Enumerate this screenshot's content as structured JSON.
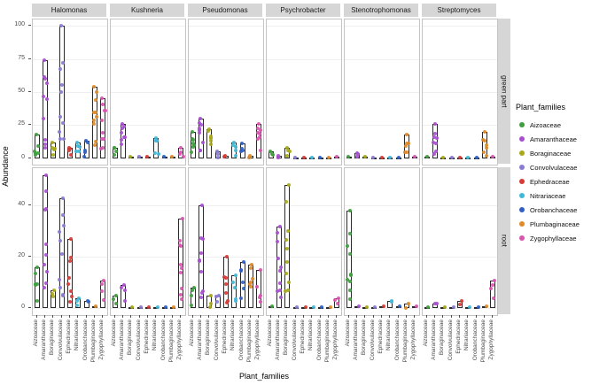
{
  "chart_data": {
    "type": "bar",
    "title": "",
    "xlabel": "Plant_families",
    "ylabel": "Abundance",
    "legend_title": "Plant_families",
    "legend_position": "right",
    "facet_cols": [
      "Halomonas",
      "Kushneria",
      "Pseudomonas",
      "Psychrobacter",
      "Stenotrophomonas",
      "Streptomyces"
    ],
    "facet_rows": [
      "green part",
      "root"
    ],
    "categories": [
      "Aizoaceae",
      "Amaranthaceae",
      "Boraginaceae",
      "Convolvulaceae",
      "Ephedraceae",
      "Nitrariaceae",
      "Orobanchaceae",
      "Plumbaginaceae",
      "Zygophyllaceae"
    ],
    "colors": {
      "Aizoaceae": "#3f9e3f",
      "Amaranthaceae": "#a84fd0",
      "Boraginaceae": "#a8a818",
      "Convolvulaceae": "#8a7ad2",
      "Ephedraceae": "#d83a34",
      "Nitrariaceae": "#3fb8d8",
      "Orobanchaceae": "#2f5fc4",
      "Plumbaginaceae": "#e08a28",
      "Zygophyllaceae": "#d855b0"
    },
    "rows": [
      {
        "name": "green part",
        "ylim": [
          0,
          100
        ],
        "ymax": 100,
        "yticks": [
          0,
          25,
          50,
          75,
          100
        ],
        "values": {
          "Halomonas": [
            18,
            74,
            12,
            100,
            8,
            12,
            13,
            54,
            45
          ],
          "Kushneria": [
            8,
            26,
            1,
            1,
            1,
            15,
            1,
            1,
            8
          ],
          "Pseudomonas": [
            20,
            30,
            22,
            5,
            2,
            12,
            11,
            2,
            26
          ],
          "Psychrobacter": [
            5,
            2,
            8,
            0.5,
            0.5,
            0.5,
            0.5,
            0.5,
            1
          ],
          "Stenotrophomonas": [
            1,
            4,
            1,
            0.5,
            0.5,
            0.5,
            0.5,
            18,
            1
          ],
          "Streptomyces": [
            1,
            26,
            0.5,
            0.5,
            0.5,
            0.5,
            0.5,
            20,
            1
          ]
        }
      },
      {
        "name": "root",
        "ylim": [
          0,
          52
        ],
        "ymax": 52,
        "yticks": [
          0,
          20,
          40
        ],
        "values": {
          "Halomonas": [
            16,
            52,
            7,
            43,
            27,
            4,
            3,
            1,
            11
          ],
          "Kushneria": [
            5,
            9,
            0.5,
            0.5,
            0.5,
            0.5,
            0.5,
            0.5,
            35
          ],
          "Pseudomonas": [
            8,
            40,
            5,
            5,
            20,
            13,
            18,
            17,
            15
          ],
          "Psychrobacter": [
            1,
            32,
            48,
            0.5,
            0.5,
            0.5,
            0.5,
            0.5,
            4
          ],
          "Stenotrophomonas": [
            38,
            1,
            0.5,
            0.5,
            1,
            3,
            1,
            2,
            1
          ],
          "Streptomyces": [
            0.5,
            2,
            0.5,
            0.5,
            3,
            0.5,
            0.5,
            1,
            11
          ]
        }
      }
    ]
  }
}
